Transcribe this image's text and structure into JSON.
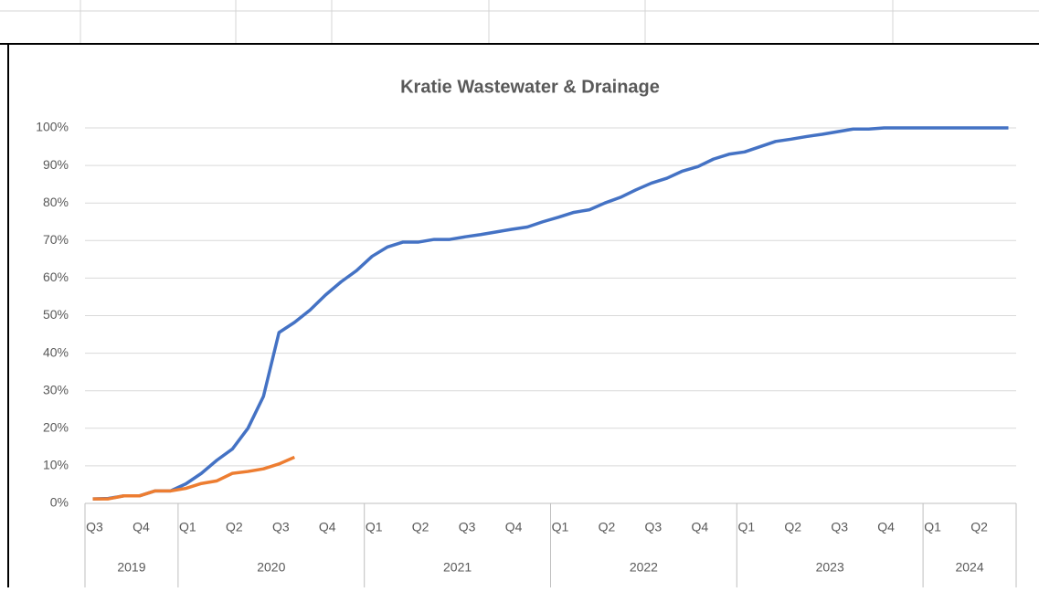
{
  "chart_data": {
    "type": "line",
    "title": "Kratie Wastewater & Drainage",
    "categories": [
      "Q3",
      null,
      null,
      "Q4",
      null,
      null,
      "Q1",
      null,
      null,
      "Q2",
      null,
      null,
      "Q3",
      null,
      null,
      "Q4",
      null,
      null,
      "Q1",
      null,
      null,
      "Q2",
      null,
      null,
      "Q3",
      null,
      null,
      "Q4",
      null,
      null,
      "Q1",
      null,
      null,
      "Q2",
      null,
      null,
      "Q3",
      null,
      null,
      "Q4",
      null,
      null,
      "Q1",
      null,
      null,
      "Q2",
      null,
      null,
      "Q3",
      null,
      null,
      "Q4",
      null,
      null,
      "Q1",
      null,
      null,
      "Q2",
      null,
      null
    ],
    "groups": [
      {
        "label": "2019",
        "months": 6
      },
      {
        "label": "2020",
        "months": 12
      },
      {
        "label": "2021",
        "months": 12
      },
      {
        "label": "2022",
        "months": 12
      },
      {
        "label": "2023",
        "months": 12
      },
      {
        "label": "2024",
        "months": 6
      }
    ],
    "series": [
      {
        "color": "#4472c4",
        "values": [
          1.2,
          1.3,
          2,
          2,
          3.3,
          3.3,
          5.2,
          8,
          11.5,
          14.5,
          20,
          28.5,
          45.5,
          48.2,
          51.5,
          55.5,
          59,
          62,
          65.8,
          68.3,
          69.6,
          69.6,
          70.3,
          70.3,
          71,
          71.6,
          72.3,
          73,
          73.6,
          75,
          76.2,
          77.5,
          78.2,
          80,
          81.5,
          83.5,
          85.3,
          86.6,
          88.5,
          89.7,
          91.7,
          93,
          93.6,
          95,
          96.4,
          97,
          97.7,
          98.3,
          99,
          99.7,
          99.7,
          100,
          100,
          100,
          100,
          100,
          100,
          100,
          100,
          100
        ]
      },
      {
        "color": "#ed7d31",
        "values": [
          1.2,
          1.2,
          2,
          2,
          3.3,
          3.3,
          4,
          5.3,
          6,
          8,
          8.5,
          9.2,
          10.5,
          12.3,
          null,
          null,
          null,
          null,
          null,
          null,
          null,
          null,
          null,
          null,
          null,
          null,
          null,
          null,
          null,
          null,
          null,
          null,
          null,
          null,
          null,
          null,
          null,
          null,
          null,
          null,
          null,
          null,
          null,
          null,
          null,
          null,
          null,
          null,
          null,
          null,
          null,
          null,
          null,
          null,
          null,
          null,
          null,
          null,
          null,
          null
        ]
      }
    ],
    "ylim": [
      0,
      100
    ],
    "yticks": [
      {
        "value": 0,
        "label": "0%"
      },
      {
        "value": 10,
        "label": "10%"
      },
      {
        "value": 20,
        "label": "20%"
      },
      {
        "value": 30,
        "label": "30%"
      },
      {
        "value": 40,
        "label": "40%"
      },
      {
        "value": 50,
        "label": "50%"
      },
      {
        "value": 60,
        "label": "60%"
      },
      {
        "value": 70,
        "label": "70%"
      },
      {
        "value": 80,
        "label": "80%"
      },
      {
        "value": 90,
        "label": "90%"
      },
      {
        "value": 100,
        "label": "100%"
      }
    ],
    "grid": true
  }
}
